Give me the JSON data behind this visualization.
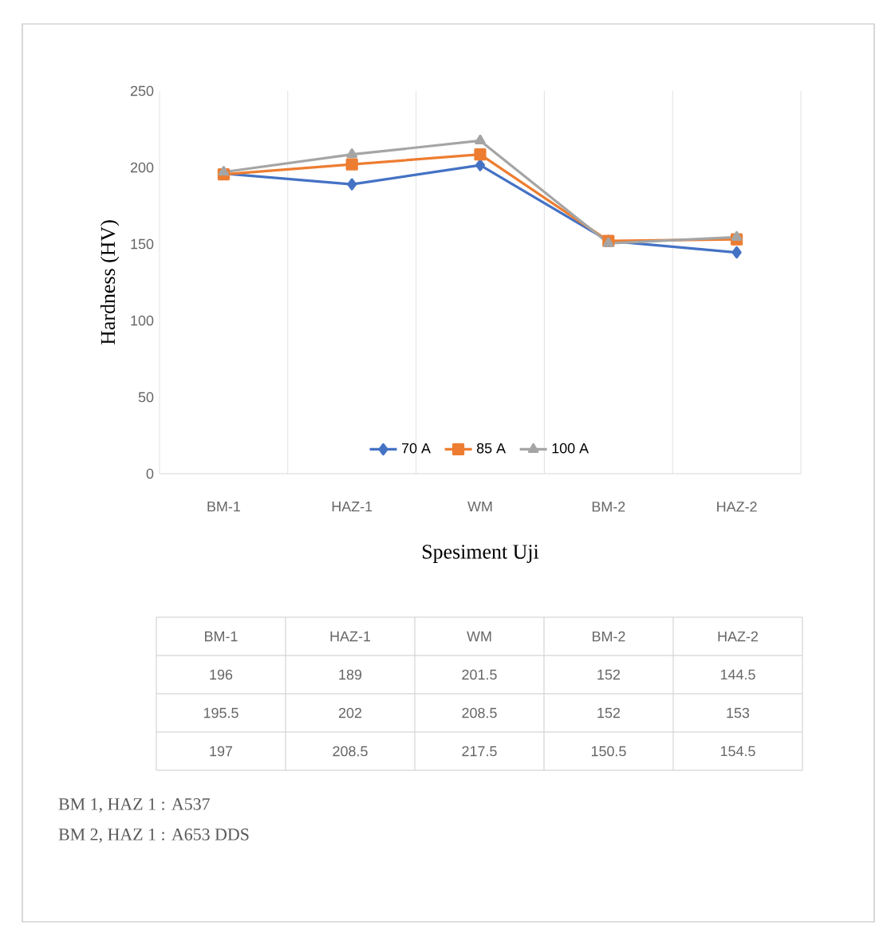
{
  "chart_data": {
    "type": "line",
    "xlabel": "Spesiment Uji",
    "ylabel": "Hardness (HV)",
    "categories": [
      "BM-1",
      "HAZ-1",
      "WM",
      "BM-2",
      "HAZ-2"
    ],
    "series": [
      {
        "name": "70 A",
        "color": "#4472c4",
        "marker": "diamond",
        "values": [
          196,
          189,
          201.5,
          152,
          144.5
        ]
      },
      {
        "name": "85 A",
        "color": "#ed7d31",
        "marker": "square",
        "values": [
          195.5,
          202,
          208.5,
          152,
          153
        ]
      },
      {
        "name": "100 A",
        "color": "#a5a5a5",
        "marker": "triangle",
        "values": [
          197,
          208.5,
          217.5,
          150.5,
          154.5
        ]
      }
    ],
    "ylim": [
      0,
      250
    ],
    "yticks": [
      0,
      50,
      100,
      150,
      200,
      250
    ],
    "grid": "x",
    "legend": "bottom",
    "data_labels": true,
    "annotations": [
      "BM 1, HAZ 1 : A537",
      "BM 2, HAZ 1 : A653 DDS"
    ]
  }
}
